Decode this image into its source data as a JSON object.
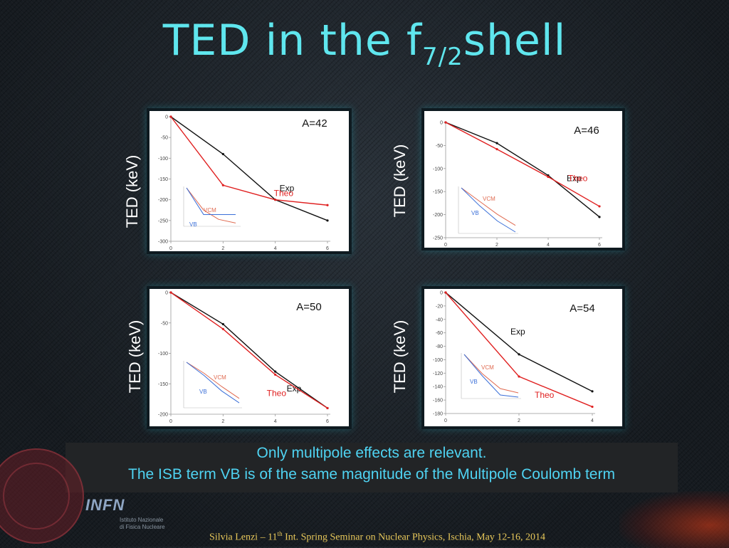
{
  "title": {
    "main": "TED in the f",
    "sub": "7/2",
    "tail": "shell"
  },
  "caption": {
    "line1": "Only multipole effects are relevant.",
    "line2": "The ISB term VB is of the same magnitude of the Multipole Coulomb term"
  },
  "footer": {
    "pre": "Silvia Lenzi –  11",
    "sup": "th",
    "post": "  Int. Spring Seminar on Nuclear Physics, Ischia, May 12-16, 2014"
  },
  "logo": {
    "name": "INFN",
    "sub1": "Istituto Nazionale",
    "sub2": "di Fisica Nucleare"
  },
  "colors": {
    "exp": "#111111",
    "theo": "#e02020",
    "vcm": "#e06a50",
    "vb": "#3a6fd8",
    "title": "#5fe6ee"
  },
  "chart_data": [
    {
      "type": "line",
      "annotation": "A=42",
      "ylabel": "TED (keV)",
      "xlim": [
        0,
        6
      ],
      "xticks": [
        0,
        2,
        4,
        6
      ],
      "ylim": [
        -300,
        0
      ],
      "yticks": [
        0,
        -50,
        -100,
        -150,
        -200,
        -250,
        -300
      ],
      "series": [
        {
          "name": "Exp",
          "x": [
            0,
            2,
            4,
            6
          ],
          "values": [
            0,
            -90,
            -200,
            -250
          ]
        },
        {
          "name": "Theo",
          "x": [
            0,
            2,
            4,
            6
          ],
          "values": [
            0,
            -165,
            -200,
            -213
          ]
        }
      ],
      "inset": {
        "series": [
          {
            "name": "VCM",
            "x": [
              0,
              0.8,
              1.5,
              2.3
            ],
            "values": [
              0,
              -0.6,
              -0.85,
              -0.95
            ]
          },
          {
            "name": "VB",
            "x": [
              0,
              0.8,
              1.5,
              2.3
            ],
            "values": [
              0,
              -0.72,
              -0.72,
              -0.72
            ]
          }
        ]
      }
    },
    {
      "type": "line",
      "annotation": "A=46",
      "ylabel": "TED (keV)",
      "xlim": [
        0,
        6
      ],
      "xticks": [
        0,
        2,
        4,
        6
      ],
      "ylim": [
        -250,
        0
      ],
      "yticks": [
        0,
        -50,
        -100,
        -150,
        -200,
        -250
      ],
      "series": [
        {
          "name": "Exp",
          "x": [
            0,
            2,
            4,
            6
          ],
          "values": [
            0,
            -45,
            -115,
            -205
          ]
        },
        {
          "name": "Theo",
          "x": [
            0,
            2,
            4,
            6
          ],
          "values": [
            0,
            -58,
            -118,
            -182
          ]
        }
      ],
      "inset": {
        "series": [
          {
            "name": "VCM",
            "x": [
              0,
              0.8,
              1.6,
              2.4
            ],
            "values": [
              0,
              -0.3,
              -0.6,
              -0.85
            ]
          },
          {
            "name": "VB",
            "x": [
              0,
              0.8,
              1.6,
              2.4
            ],
            "values": [
              0,
              -0.4,
              -0.75,
              -1.0
            ]
          }
        ]
      }
    },
    {
      "type": "line",
      "annotation": "A=50",
      "ylabel": "TED (keV)",
      "xlim": [
        0,
        6
      ],
      "xticks": [
        0,
        2,
        4,
        6
      ],
      "ylim": [
        -200,
        0
      ],
      "yticks": [
        0,
        -50,
        -100,
        -150,
        -200
      ],
      "series": [
        {
          "name": "Exp",
          "x": [
            0,
            2,
            4,
            6
          ],
          "values": [
            0,
            -52,
            -130,
            -190
          ]
        },
        {
          "name": "Theo",
          "x": [
            0,
            2,
            4,
            6
          ],
          "values": [
            0,
            -60,
            -135,
            -190
          ]
        }
      ],
      "inset": {
        "series": [
          {
            "name": "VCM",
            "x": [
              0,
              0.8,
              1.6,
              2.4
            ],
            "values": [
              0,
              -0.25,
              -0.55,
              -0.82
            ]
          },
          {
            "name": "VB",
            "x": [
              0,
              0.8,
              1.6,
              2.4
            ],
            "values": [
              0,
              -0.3,
              -0.65,
              -0.92
            ]
          }
        ]
      }
    },
    {
      "type": "line",
      "annotation": "A=54",
      "ylabel": "TED (keV)",
      "xlim": [
        0,
        4
      ],
      "xticks": [
        0,
        2,
        4
      ],
      "ylim": [
        -180,
        0
      ],
      "yticks": [
        0,
        -20,
        -40,
        -60,
        -80,
        -100,
        -120,
        -140,
        -160,
        -180
      ],
      "series": [
        {
          "name": "Exp",
          "x": [
            0,
            2,
            4
          ],
          "values": [
            0,
            -92,
            -147
          ]
        },
        {
          "name": "Theo",
          "x": [
            0,
            2,
            4
          ],
          "values": [
            0,
            -125,
            -170
          ]
        }
      ],
      "inset": {
        "series": [
          {
            "name": "VCM",
            "x": [
              0,
              0.8,
              1.6,
              2.4
            ],
            "values": [
              0,
              -0.45,
              -0.8,
              -0.9
            ]
          },
          {
            "name": "VB",
            "x": [
              0,
              0.8,
              1.6,
              2.4
            ],
            "values": [
              0,
              -0.5,
              -0.95,
              -1.0
            ]
          }
        ]
      }
    }
  ]
}
